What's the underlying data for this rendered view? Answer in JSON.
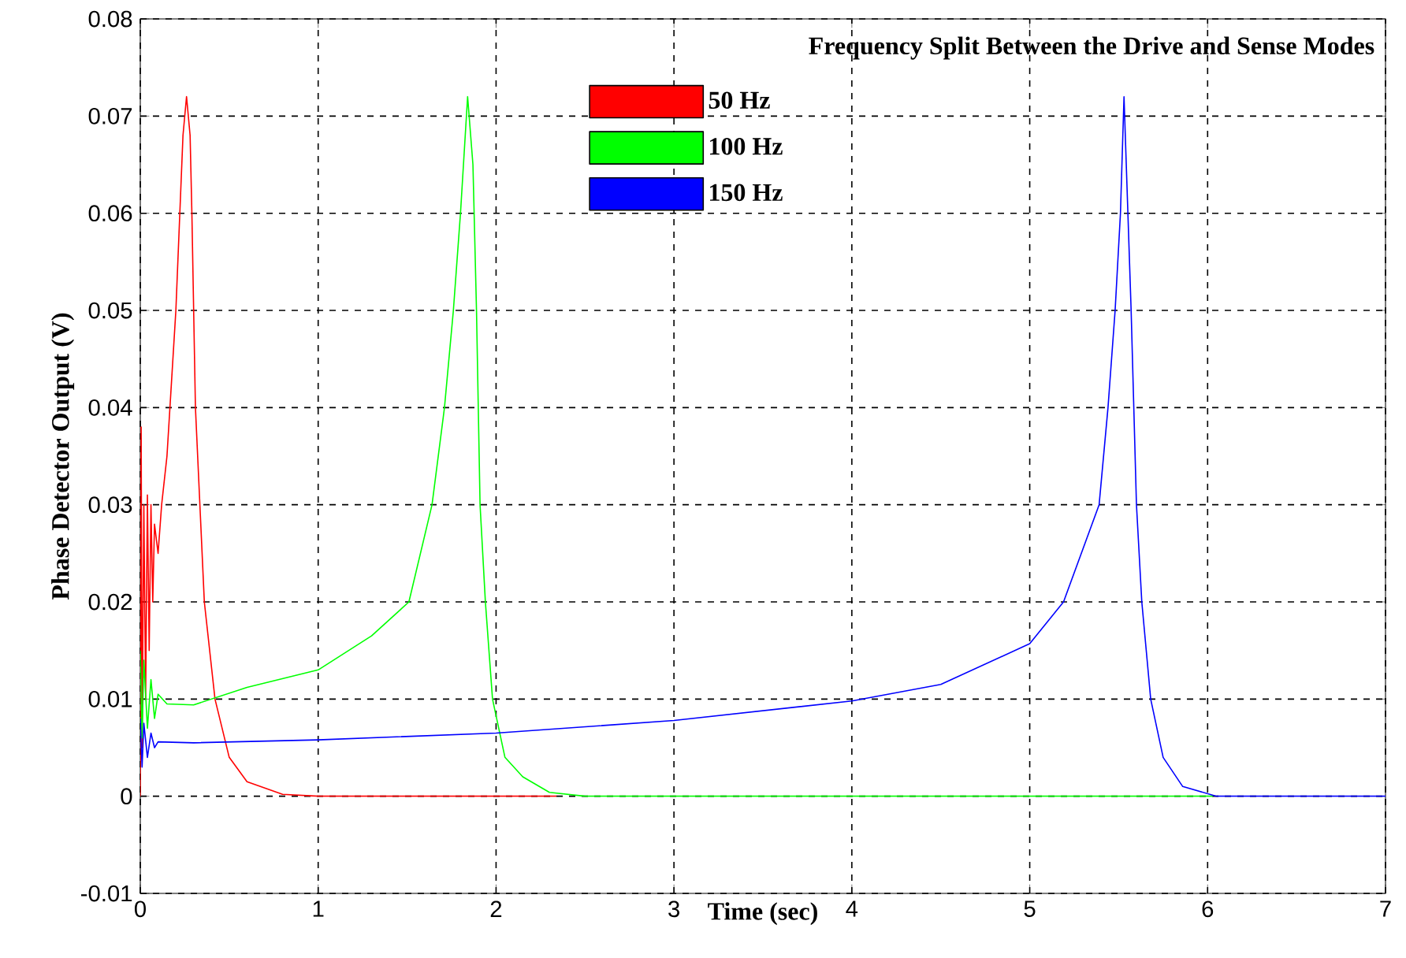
{
  "chart_data": {
    "type": "line",
    "legend_title": "Frequency Split Between the Drive and Sense Modes",
    "xlabel": "Time (sec)",
    "ylabel": "Phase Detector Output (V)",
    "xlim": [
      0,
      7
    ],
    "ylim": [
      -0.01,
      0.08
    ],
    "xticks": [
      0,
      1,
      2,
      3,
      4,
      5,
      6,
      7
    ],
    "yticks": [
      -0.01,
      0,
      0.01,
      0.02,
      0.03,
      0.04,
      0.05,
      0.06,
      0.07,
      0.08
    ],
    "grid": true,
    "legend": "top",
    "line_style": "solid",
    "marker": "none",
    "series": [
      {
        "name": "50 Hz",
        "color": "#ff0000",
        "x": [
          0,
          0.005,
          0.01,
          0.02,
          0.03,
          0.04,
          0.05,
          0.06,
          0.07,
          0.08,
          0.1,
          0.12,
          0.15,
          0.2,
          0.24,
          0.26,
          0.28,
          0.29,
          0.31,
          0.36,
          0.42,
          0.5,
          0.6,
          0.8,
          1,
          2.34
        ],
        "values": [
          0,
          0.038,
          0.005,
          0.03,
          0.01,
          0.031,
          0.015,
          0.03,
          0.02,
          0.028,
          0.025,
          0.03,
          0.035,
          0.05,
          0.068,
          0.072,
          0.068,
          0.06,
          0.04,
          0.02,
          0.01,
          0.004,
          0.0015,
          0.0002,
          0,
          0
        ]
      },
      {
        "name": "100 Hz",
        "color": "#00ff00",
        "x": [
          0,
          0.01,
          0.02,
          0.04,
          0.06,
          0.08,
          0.1,
          0.15,
          0.3,
          0.6,
          1,
          1.3,
          1.51,
          1.64,
          1.71,
          1.76,
          1.8,
          1.84,
          1.87,
          1.89,
          1.91,
          1.94,
          1.98,
          2.05,
          2.15,
          2.3,
          2.5,
          6.03
        ],
        "values": [
          0.015,
          0.006,
          0.014,
          0.007,
          0.012,
          0.008,
          0.0105,
          0.0095,
          0.0094,
          0.0112,
          0.013,
          0.0165,
          0.02,
          0.03,
          0.04,
          0.05,
          0.06,
          0.072,
          0.065,
          0.05,
          0.03,
          0.02,
          0.01,
          0.004,
          0.002,
          0.0004,
          0,
          0
        ]
      },
      {
        "name": "150 Hz",
        "color": "#0000ff",
        "x": [
          0,
          0.01,
          0.02,
          0.04,
          0.06,
          0.08,
          0.1,
          0.3,
          1,
          2,
          3,
          4,
          4.5,
          5,
          5.19,
          5.39,
          5.44,
          5.48,
          5.51,
          5.53,
          5.57,
          5.6,
          5.63,
          5.68,
          5.75,
          5.86,
          6.05,
          7
        ],
        "values": [
          0.008,
          0.003,
          0.0075,
          0.004,
          0.0065,
          0.005,
          0.0056,
          0.0055,
          0.0058,
          0.0065,
          0.0078,
          0.0098,
          0.0115,
          0.0157,
          0.02,
          0.03,
          0.04,
          0.05,
          0.06,
          0.072,
          0.05,
          0.03,
          0.02,
          0.01,
          0.004,
          0.001,
          0,
          0
        ]
      }
    ]
  }
}
